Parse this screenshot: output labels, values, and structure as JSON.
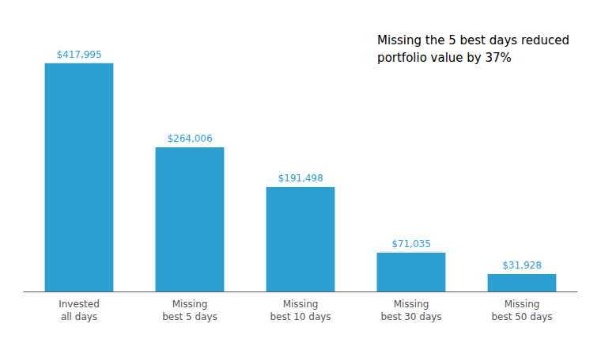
{
  "chart_data": {
    "type": "bar",
    "categories": [
      "Invested\nall days",
      "Missing\nbest 5 days",
      "Missing\nbest 10 days",
      "Missing\nbest 30 days",
      "Missing\nbest 50 days"
    ],
    "values": [
      417995,
      264006,
      191498,
      71035,
      31928
    ],
    "value_labels": [
      "$417,995",
      "$264,006",
      "$191,498",
      "$71,035",
      "$31,928"
    ],
    "data_labels": true,
    "color": "#2B9FD0",
    "ylim": [
      0,
      490000
    ],
    "tick_labels": "x",
    "grid": false,
    "annotations": [
      "Missing the 5 best days reduced\nportfolio value by 37%"
    ]
  }
}
